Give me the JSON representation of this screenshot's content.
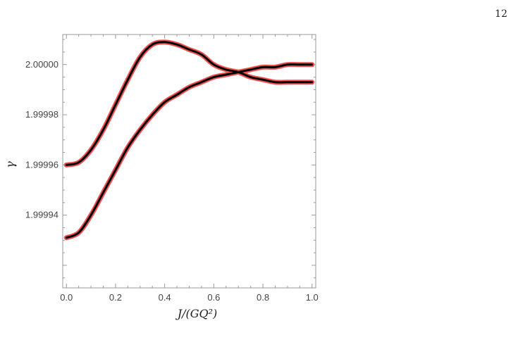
{
  "page_number": "12",
  "chart_data": {
    "type": "line",
    "xlabel": "J/(GQ²)",
    "ylabel": "γ",
    "xlim": [
      -0.015,
      1.015
    ],
    "ylim": [
      1.999911,
      2.000012
    ],
    "x_ticks": [
      0.0,
      0.2,
      0.4,
      0.6,
      0.8,
      1.0
    ],
    "x_tick_labels": [
      "0.0",
      "0.2",
      "0.4",
      "0.6",
      "0.8",
      "1.0"
    ],
    "y_ticks": [
      1.99994,
      1.99996,
      1.99998,
      2.0
    ],
    "y_tick_labels": [
      "1.99994",
      "1.99996",
      "1.99998",
      "2.00000"
    ],
    "grid": false,
    "series_colors": {
      "numerical": "#f05050",
      "analytic": "#000000"
    },
    "series": [
      {
        "x": [
          0.0,
          0.05,
          0.1,
          0.15,
          0.2,
          0.25,
          0.3,
          0.35,
          0.4,
          0.45,
          0.5,
          0.55,
          0.6,
          0.65,
          0.7,
          0.75,
          0.8,
          0.85,
          0.9,
          0.95,
          1.0
        ],
        "values": [
          1.99996,
          1.999961,
          1.999966,
          1.999974,
          1.999984,
          1.999994,
          2.000003,
          2.000008,
          2.000009,
          2.000008,
          2.000006,
          2.000004,
          2.0,
          1.999998,
          1.999997,
          1.999995,
          1.999994,
          1.999993,
          1.999993,
          1.999993,
          1.999993
        ]
      },
      {
        "x": [
          0.0,
          0.05,
          0.1,
          0.15,
          0.2,
          0.25,
          0.3,
          0.35,
          0.4,
          0.45,
          0.5,
          0.55,
          0.6,
          0.65,
          0.7,
          0.75,
          0.8,
          0.85,
          0.9,
          0.95,
          1.0
        ],
        "values": [
          1.999931,
          1.999933,
          1.99994,
          1.999949,
          1.999958,
          1.999967,
          1.999974,
          1.99998,
          1.999985,
          1.999988,
          1.999991,
          1.999993,
          1.999995,
          1.999996,
          1.999997,
          1.999998,
          1.999999,
          1.999999,
          2.0,
          2.0,
          2.0
        ]
      }
    ]
  }
}
